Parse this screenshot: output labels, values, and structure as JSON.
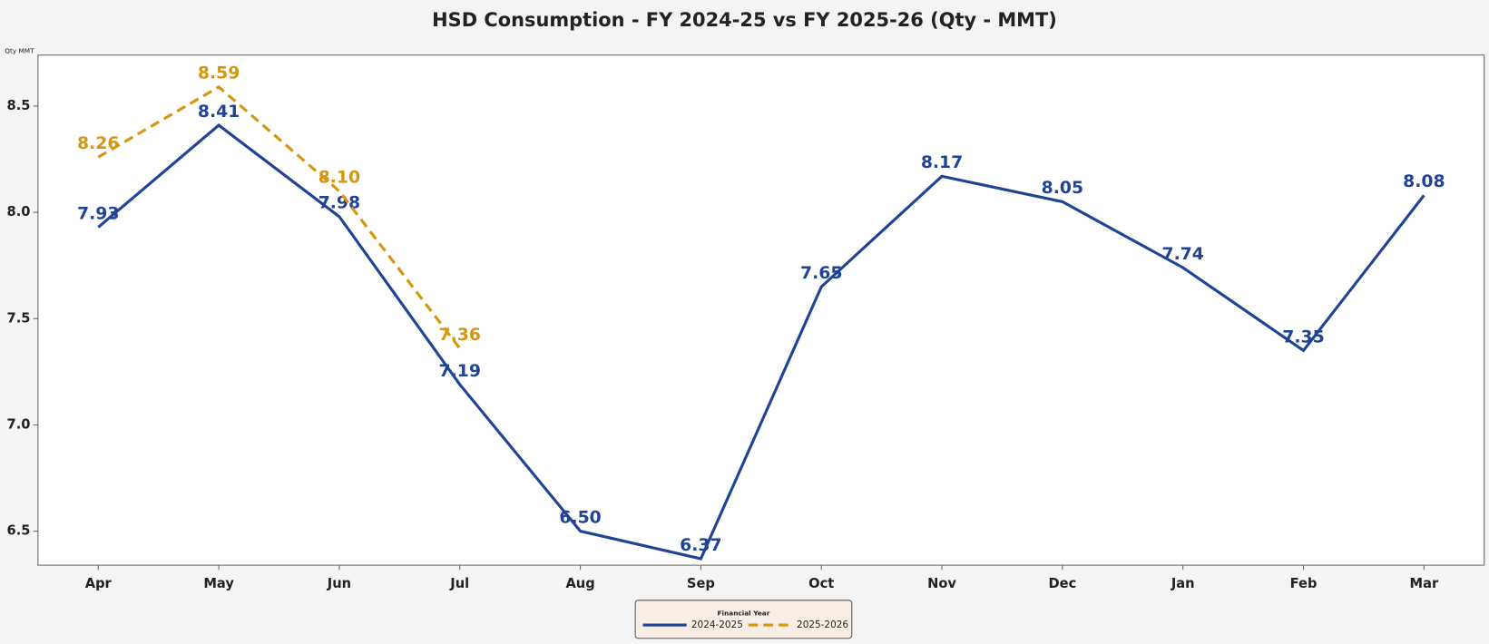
{
  "chart_data": {
    "type": "line",
    "title": "HSD Consumption - FY 2024-25 vs FY 2025-26 (Qty - MMT)",
    "y_label": "Qty MMT",
    "legend_title": "Financial Year",
    "categories": [
      "Apr",
      "May",
      "Jun",
      "Jul",
      "Aug",
      "Sep",
      "Oct",
      "Nov",
      "Dec",
      "Jan",
      "Feb",
      "Mar"
    ],
    "series": [
      {
        "name": "2024-2025",
        "color": "#1f4496",
        "dash": false,
        "values": [
          7.93,
          8.41,
          7.98,
          7.19,
          6.5,
          6.37,
          7.65,
          8.17,
          8.05,
          7.74,
          7.35,
          8.08
        ],
        "value_labels": [
          "7.93",
          "8.41",
          "7.98",
          "7.19",
          "6.50",
          "6.37",
          "7.65",
          "8.17",
          "8.05",
          "7.74",
          "7.35",
          "8.08"
        ]
      },
      {
        "name": "2025-2026",
        "color": "#d6960f",
        "dash": true,
        "values": [
          8.26,
          8.59,
          8.1,
          7.36,
          null,
          null,
          null,
          null,
          null,
          null,
          null,
          null
        ],
        "value_labels": [
          "8.26",
          "8.59",
          "8.10",
          "7.36",
          null,
          null,
          null,
          null,
          null,
          null,
          null,
          null
        ]
      }
    ],
    "ylim": [
      6.34,
      8.74
    ],
    "yticks": [
      6.5,
      {
        "value": 7,
        "label": "7.0"
      },
      7.5,
      {
        "value": 8,
        "label": "8.0"
      },
      8.5
    ],
    "grid": false,
    "legend": "bottom"
  }
}
